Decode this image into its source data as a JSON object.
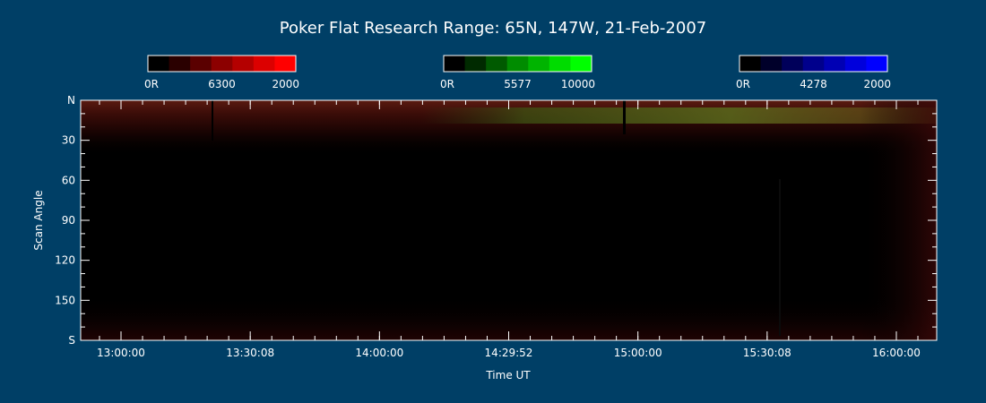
{
  "chart_data": {
    "type": "heatmap",
    "title": "Poker Flat Research Range: 65N, 147W, 21-Feb-2007",
    "xlabel": "Time UT",
    "ylabel": "Scan Angle",
    "x_ticks": [
      "13:00:00",
      "13:30:08",
      "14:00:00",
      "14:29:52",
      "15:00:00",
      "15:30:08",
      "16:00:00"
    ],
    "y_ticks": [
      "N",
      "30",
      "60",
      "90",
      "120",
      "150",
      "S"
    ],
    "y_range": [
      0,
      180
    ],
    "colorbars": [
      {
        "name": "6300",
        "min_label": "0R",
        "max_label": "2000",
        "wavelength": "6300",
        "colors": [
          "#000000",
          "#2a0000",
          "#5a0000",
          "#8c0000",
          "#b40000",
          "#dc0000",
          "#ff0000"
        ]
      },
      {
        "name": "5577",
        "min_label": "0R",
        "max_label": "10000",
        "wavelength": "5577",
        "colors": [
          "#000000",
          "#002a00",
          "#005a00",
          "#008c00",
          "#00b400",
          "#00dc00",
          "#00ff00"
        ]
      },
      {
        "name": "4278",
        "min_label": "0R",
        "max_label": "2000",
        "wavelength": "4278",
        "colors": [
          "#000000",
          "#00002a",
          "#00005a",
          "#00008c",
          "#0000b4",
          "#0000dc",
          "#0000ff"
        ]
      }
    ],
    "emission_bands": [
      {
        "channel": "6300 red",
        "scan_angle_range": [
          0,
          35
        ],
        "peak_near": "N horizon"
      },
      {
        "channel": "5577 green arc",
        "scan_angle_range": [
          8,
          18
        ],
        "time_range": [
          "14:30",
          "16:10"
        ]
      }
    ]
  }
}
